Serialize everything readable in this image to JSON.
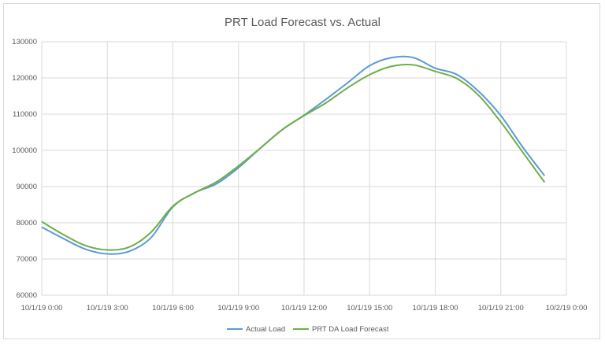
{
  "chart_data": {
    "type": "line",
    "title": "PRT Load Forecast vs. Actual",
    "xlabel": "",
    "ylabel": "",
    "x_ticks": [
      "10/1/19 0:00",
      "10/1/19 3:00",
      "10/1/19 6:00",
      "10/1/19 9:00",
      "10/1/19 12:00",
      "10/1/19 15:00",
      "10/1/19 18:00",
      "10/1/19 21:00",
      "10/2/19 0:00"
    ],
    "xlim": [
      "10/1/19 0:00",
      "10/2/19 0:00"
    ],
    "ylim": [
      60000,
      130000
    ],
    "y_ticks": [
      60000,
      70000,
      80000,
      90000,
      100000,
      110000,
      120000,
      130000
    ],
    "grid": true,
    "smooth": true,
    "legend_position": "bottom",
    "x": [
      "10/1/19 0:00",
      "10/1/19 1:00",
      "10/1/19 2:00",
      "10/1/19 3:00",
      "10/1/19 4:00",
      "10/1/19 5:00",
      "10/1/19 6:00",
      "10/1/19 7:00",
      "10/1/19 8:00",
      "10/1/19 9:00",
      "10/1/19 10:00",
      "10/1/19 11:00",
      "10/1/19 12:00",
      "10/1/19 13:00",
      "10/1/19 14:00",
      "10/1/19 15:00",
      "10/1/19 16:00",
      "10/1/19 17:00",
      "10/1/19 18:00",
      "10/1/19 19:00",
      "10/1/19 20:00",
      "10/1/19 21:00",
      "10/1/19 22:00",
      "10/1/19 23:00"
    ],
    "series": [
      {
        "name": "Actual Load",
        "color": "#5b9bd5",
        "values": [
          78800,
          75600,
          72700,
          71400,
          72100,
          75900,
          84400,
          88300,
          90800,
          95200,
          100600,
          105700,
          109700,
          114100,
          118700,
          123400,
          125600,
          125600,
          122700,
          120900,
          116200,
          109600,
          100900,
          93000
        ]
      },
      {
        "name": "PRT DA Load Forecast",
        "color": "#70ad47",
        "values": [
          80300,
          76700,
          73700,
          72500,
          73300,
          77400,
          84600,
          88300,
          91300,
          95700,
          100600,
          105700,
          109600,
          113100,
          117300,
          120900,
          123200,
          123600,
          121800,
          119800,
          115100,
          107800,
          99500,
          91200
        ]
      }
    ]
  }
}
